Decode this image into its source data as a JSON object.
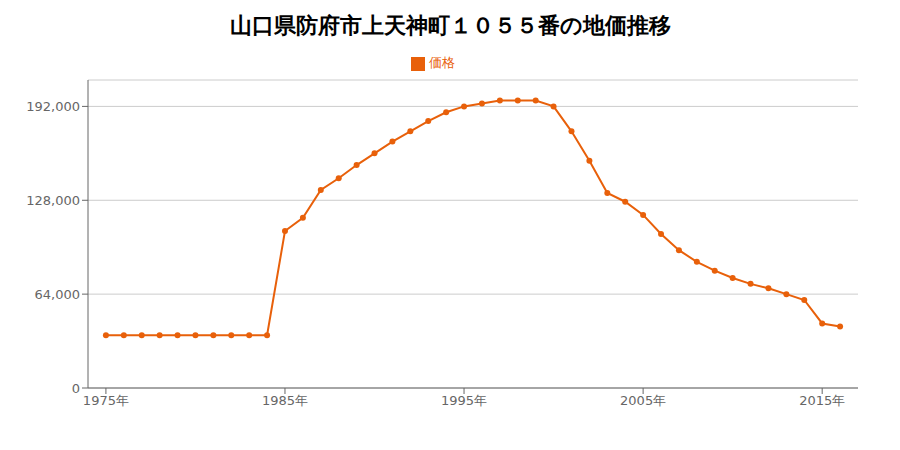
{
  "chart_data": {
    "type": "line",
    "title": "山口県防府市上天神町１０５５番の地価推移",
    "x": [
      1975,
      1976,
      1977,
      1978,
      1979,
      1980,
      1981,
      1982,
      1983,
      1984,
      1985,
      1986,
      1987,
      1988,
      1989,
      1990,
      1991,
      1992,
      1993,
      1994,
      1995,
      1996,
      1997,
      1998,
      1999,
      2000,
      2001,
      2002,
      2003,
      2004,
      2005,
      2006,
      2007,
      2008,
      2009,
      2010,
      2011,
      2012,
      2013,
      2014,
      2015,
      2016
    ],
    "series": [
      {
        "name": "価格",
        "color": "#e8600a",
        "marker": "circle",
        "values": [
          36000,
          36000,
          36000,
          36000,
          36000,
          36000,
          36000,
          36000,
          36000,
          36000,
          107000,
          116000,
          135000,
          143000,
          152000,
          160000,
          168000,
          175000,
          182000,
          188000,
          192000,
          194000,
          196000,
          196000,
          196000,
          192000,
          175000,
          155000,
          133000,
          127000,
          118000,
          105000,
          94000,
          86000,
          80000,
          75000,
          71000,
          68000,
          64000,
          60000,
          44000,
          42000
        ]
      }
    ],
    "xlim": [
      1974,
      2017
    ],
    "xticks": [
      {
        "value": 1975,
        "label": "1975年"
      },
      {
        "value": 1985,
        "label": "1985年"
      },
      {
        "value": 1995,
        "label": "1995年"
      },
      {
        "value": 2005,
        "label": "2005年"
      },
      {
        "value": 2015,
        "label": "2015年"
      }
    ],
    "ylim": [
      0,
      210000
    ],
    "yticks": [
      0,
      {
        "value": 64000,
        "label": "64,000"
      },
      {
        "value": 128000,
        "label": "128,000"
      },
      {
        "value": 192000,
        "label": "192,000"
      }
    ],
    "grid": true,
    "legend": "top"
  }
}
